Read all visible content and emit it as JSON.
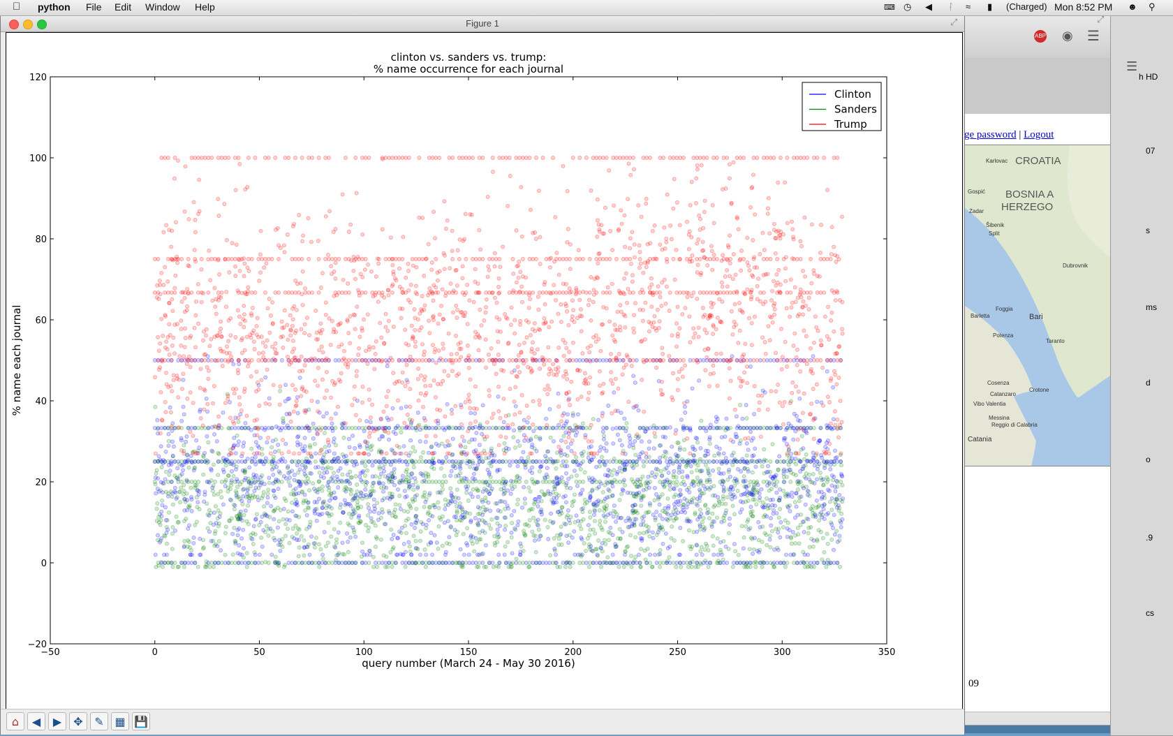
{
  "menubar": {
    "app_name": "python",
    "menus": [
      "File",
      "Edit",
      "Window",
      "Help"
    ],
    "battery_status": "(Charged)",
    "clock": "Mon 8:52 PM"
  },
  "figure_window": {
    "title": "Figure 1",
    "toolbar_icons": [
      "home-icon",
      "back-icon",
      "forward-icon",
      "pan-icon",
      "zoom-icon",
      "subplots-icon",
      "save-icon"
    ]
  },
  "background_window": {
    "links": [
      "ge password",
      "Logout"
    ],
    "separator": "|",
    "map_labels": [
      "CROATIA",
      "BOSNIA A",
      "HERZEGO",
      "Karlovac",
      "Zadar",
      "Šibenik",
      "Split",
      "Dubrovnik",
      "Gospić",
      "Foggia",
      "Barletta",
      "Bari",
      "Potenza",
      "Taranto",
      "Cosenza",
      "Crotone",
      "Catanzaro",
      "Vibo Valentia",
      "Messina",
      "Reggio di Calabria",
      "Catania"
    ],
    "sidebar_fragments": [
      "h HD",
      "07",
      "s",
      "ms",
      "d",
      "o",
      ".9",
      "cs",
      "09"
    ]
  },
  "chart_data": {
    "type": "scatter",
    "title": "clinton vs. sanders vs. trump:",
    "subtitle": "% name occurrence for each journal",
    "xlabel": "query number (March 24 - May 30 2016)",
    "ylabel": "% name each journal",
    "xlim": [
      -50,
      350
    ],
    "ylim": [
      -20,
      120
    ],
    "xticks": [
      "−50",
      "0",
      "50",
      "100",
      "150",
      "200",
      "250",
      "300",
      "350"
    ],
    "yticks": [
      "−20",
      "0",
      "20",
      "40",
      "60",
      "80",
      "100",
      "120"
    ],
    "x_range_of_points": [
      0,
      329
    ],
    "legend_position": "upper right",
    "grid": false,
    "series": [
      {
        "name": "Clinton",
        "color": "#0000ff",
        "typical_range": [
          5,
          45
        ],
        "bands": [
          0,
          25,
          33.3,
          50
        ]
      },
      {
        "name": "Sanders",
        "color": "#008000",
        "typical_range": [
          2,
          40
        ],
        "bands": [
          0,
          20,
          25,
          33.3
        ]
      },
      {
        "name": "Trump",
        "color": "#ff0000",
        "typical_range": [
          30,
          95
        ],
        "bands": [
          50,
          66.7,
          75,
          100
        ]
      }
    ]
  }
}
